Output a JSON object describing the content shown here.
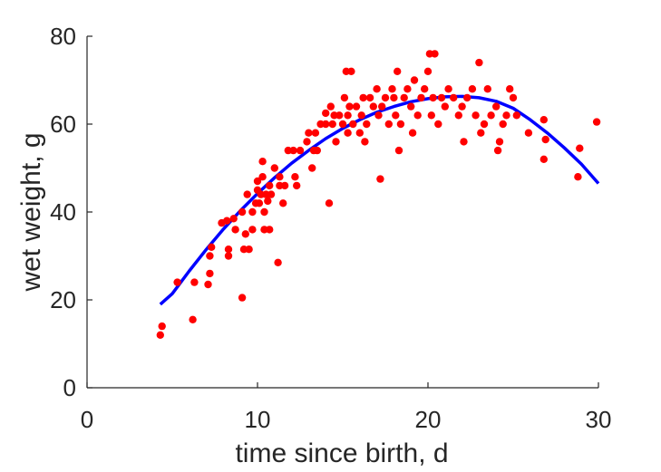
{
  "chart_data": {
    "type": "scatter",
    "xlabel": "time since birth, d",
    "ylabel": "wet weight, g",
    "xlim": [
      0,
      30
    ],
    "ylim": [
      0,
      80
    ],
    "xticks": [
      0,
      10,
      20,
      30
    ],
    "yticks": [
      0,
      20,
      40,
      60,
      80
    ],
    "grid": false,
    "colors": {
      "points": "#ff0000",
      "fit": "#0000ff",
      "axis": "#262626"
    },
    "series": [
      {
        "type": "scatter",
        "points": [
          [
            4.3,
            12
          ],
          [
            4.4,
            14
          ],
          [
            5.3,
            24
          ],
          [
            6.2,
            15.5
          ],
          [
            6.3,
            24
          ],
          [
            7.1,
            23.5
          ],
          [
            7.2,
            26
          ],
          [
            7.2,
            30
          ],
          [
            7.3,
            32
          ],
          [
            7.9,
            37.5
          ],
          [
            8.2,
            38
          ],
          [
            8.3,
            31.5
          ],
          [
            8.3,
            30
          ],
          [
            8.6,
            38.5
          ],
          [
            8.7,
            36
          ],
          [
            9.1,
            20.5
          ],
          [
            9.1,
            40
          ],
          [
            9.2,
            31.5
          ],
          [
            9.3,
            35
          ],
          [
            9.4,
            44
          ],
          [
            9.5,
            31.5
          ],
          [
            9.7,
            36
          ],
          [
            9.7,
            40
          ],
          [
            9.9,
            42
          ],
          [
            10.0,
            45
          ],
          [
            10.0,
            47
          ],
          [
            10.1,
            42
          ],
          [
            10.2,
            44
          ],
          [
            10.3,
            51.5
          ],
          [
            10.3,
            48
          ],
          [
            10.4,
            40
          ],
          [
            10.4,
            36
          ],
          [
            10.5,
            44
          ],
          [
            10.6,
            42.5
          ],
          [
            10.7,
            46
          ],
          [
            10.7,
            36
          ],
          [
            10.8,
            44
          ],
          [
            11.0,
            50
          ],
          [
            11.2,
            28.5
          ],
          [
            11.3,
            46
          ],
          [
            11.3,
            48
          ],
          [
            11.5,
            42
          ],
          [
            11.6,
            46
          ],
          [
            11.8,
            54
          ],
          [
            12.1,
            54
          ],
          [
            12.2,
            48
          ],
          [
            12.3,
            46
          ],
          [
            12.5,
            54
          ],
          [
            12.9,
            56
          ],
          [
            13.0,
            58
          ],
          [
            13.2,
            50
          ],
          [
            13.3,
            54
          ],
          [
            13.4,
            58
          ],
          [
            13.5,
            54
          ],
          [
            13.7,
            60
          ],
          [
            14.0,
            60
          ],
          [
            14.0,
            62.5
          ],
          [
            14.2,
            42
          ],
          [
            14.3,
            64
          ],
          [
            14.4,
            60
          ],
          [
            14.5,
            62
          ],
          [
            14.6,
            56
          ],
          [
            14.8,
            62
          ],
          [
            15.0,
            60
          ],
          [
            15.1,
            66
          ],
          [
            15.2,
            72
          ],
          [
            15.3,
            58
          ],
          [
            15.3,
            62
          ],
          [
            15.4,
            64
          ],
          [
            15.5,
            72
          ],
          [
            15.6,
            60
          ],
          [
            15.8,
            64
          ],
          [
            16.0,
            58
          ],
          [
            16.1,
            62
          ],
          [
            16.2,
            66
          ],
          [
            16.3,
            56
          ],
          [
            16.4,
            60
          ],
          [
            16.6,
            66
          ],
          [
            16.8,
            64
          ],
          [
            17.0,
            68
          ],
          [
            17.1,
            62
          ],
          [
            17.2,
            47.5
          ],
          [
            17.3,
            64
          ],
          [
            17.5,
            66
          ],
          [
            17.7,
            60
          ],
          [
            17.9,
            68
          ],
          [
            18.0,
            66
          ],
          [
            18.1,
            62
          ],
          [
            18.2,
            72
          ],
          [
            18.3,
            54
          ],
          [
            18.4,
            60
          ],
          [
            18.6,
            66
          ],
          [
            18.8,
            68
          ],
          [
            19.0,
            64
          ],
          [
            19.1,
            58
          ],
          [
            19.2,
            70
          ],
          [
            19.4,
            62
          ],
          [
            19.6,
            66
          ],
          [
            19.8,
            68
          ],
          [
            20.0,
            72
          ],
          [
            20.1,
            76
          ],
          [
            20.2,
            62
          ],
          [
            20.3,
            66
          ],
          [
            20.4,
            76
          ],
          [
            20.6,
            60
          ],
          [
            20.8,
            66
          ],
          [
            21.0,
            64
          ],
          [
            21.2,
            68
          ],
          [
            21.5,
            66
          ],
          [
            21.8,
            62
          ],
          [
            22.0,
            64
          ],
          [
            22.1,
            56
          ],
          [
            22.3,
            66
          ],
          [
            22.6,
            68
          ],
          [
            22.8,
            62
          ],
          [
            23.0,
            74
          ],
          [
            23.1,
            58
          ],
          [
            23.3,
            60
          ],
          [
            23.5,
            68
          ],
          [
            23.7,
            62
          ],
          [
            24.0,
            64
          ],
          [
            24.1,
            54
          ],
          [
            24.2,
            56
          ],
          [
            24.4,
            60
          ],
          [
            24.6,
            62
          ],
          [
            24.8,
            68
          ],
          [
            25.0,
            66
          ],
          [
            25.2,
            62
          ],
          [
            25.9,
            58
          ],
          [
            26.8,
            61
          ],
          [
            26.9,
            56.5
          ],
          [
            26.8,
            52
          ],
          [
            28.9,
            54.5
          ],
          [
            28.8,
            48
          ],
          [
            29.9,
            60.5
          ]
        ]
      },
      {
        "type": "line",
        "x": [
          4.3,
          5,
          6,
          7,
          8,
          9,
          10,
          11,
          12,
          13,
          14,
          15,
          16,
          17,
          18,
          19,
          20,
          21,
          22,
          23,
          24,
          25,
          26,
          27,
          28,
          29,
          30
        ],
        "y": [
          19.0,
          21.4,
          26.6,
          31.5,
          36.1,
          40.3,
          44.2,
          47.8,
          51.1,
          54.0,
          56.7,
          59.0,
          61.0,
          62.7,
          64.0,
          65.1,
          65.8,
          66.2,
          66.3,
          66.0,
          65.2,
          63.6,
          61.0,
          58.0,
          54.6,
          50.9,
          46.5
        ]
      }
    ]
  }
}
